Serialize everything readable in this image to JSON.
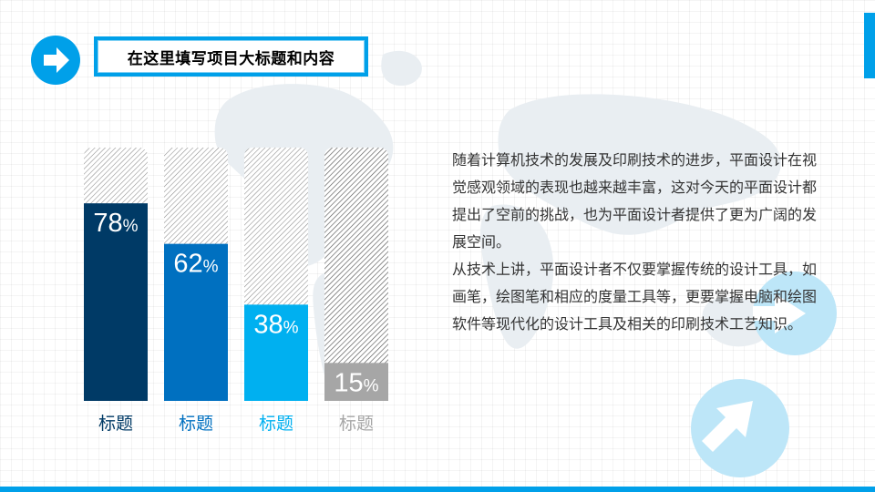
{
  "header": {
    "title": "在这里填写项目大标题和内容",
    "icon": "arrow-right-icon"
  },
  "colors": {
    "accent": "#00a0e9",
    "bar1": "#003a66",
    "bar2": "#0070c0",
    "bar3": "#00b0f0",
    "bar4": "#a6a6a6",
    "text": "#333333"
  },
  "chart_data": {
    "type": "bar",
    "categories": [
      "标题",
      "标题",
      "标题",
      "标题"
    ],
    "values": [
      78,
      62,
      38,
      15
    ],
    "value_suffix": "%",
    "ylim": [
      0,
      100
    ],
    "title": "",
    "xlabel": "",
    "ylabel": "",
    "grid": false,
    "legend": "none"
  },
  "body": {
    "paragraph1": "随着计算机技术的发展及印刷技术的进步，平面设计在视觉感观领域的表现也越来越丰富，这对今天的平面设计都提出了空前的挑战，也为平面设计者提供了更为广阔的发展空间。",
    "paragraph2": "从技术上讲，平面设计者不仅要掌握传统的设计工具，如画笔，绘图笔和相应的度量工具等，更要掌握电脑和绘图软件等现代化的设计工具及相关的印刷技术工艺知识。"
  }
}
